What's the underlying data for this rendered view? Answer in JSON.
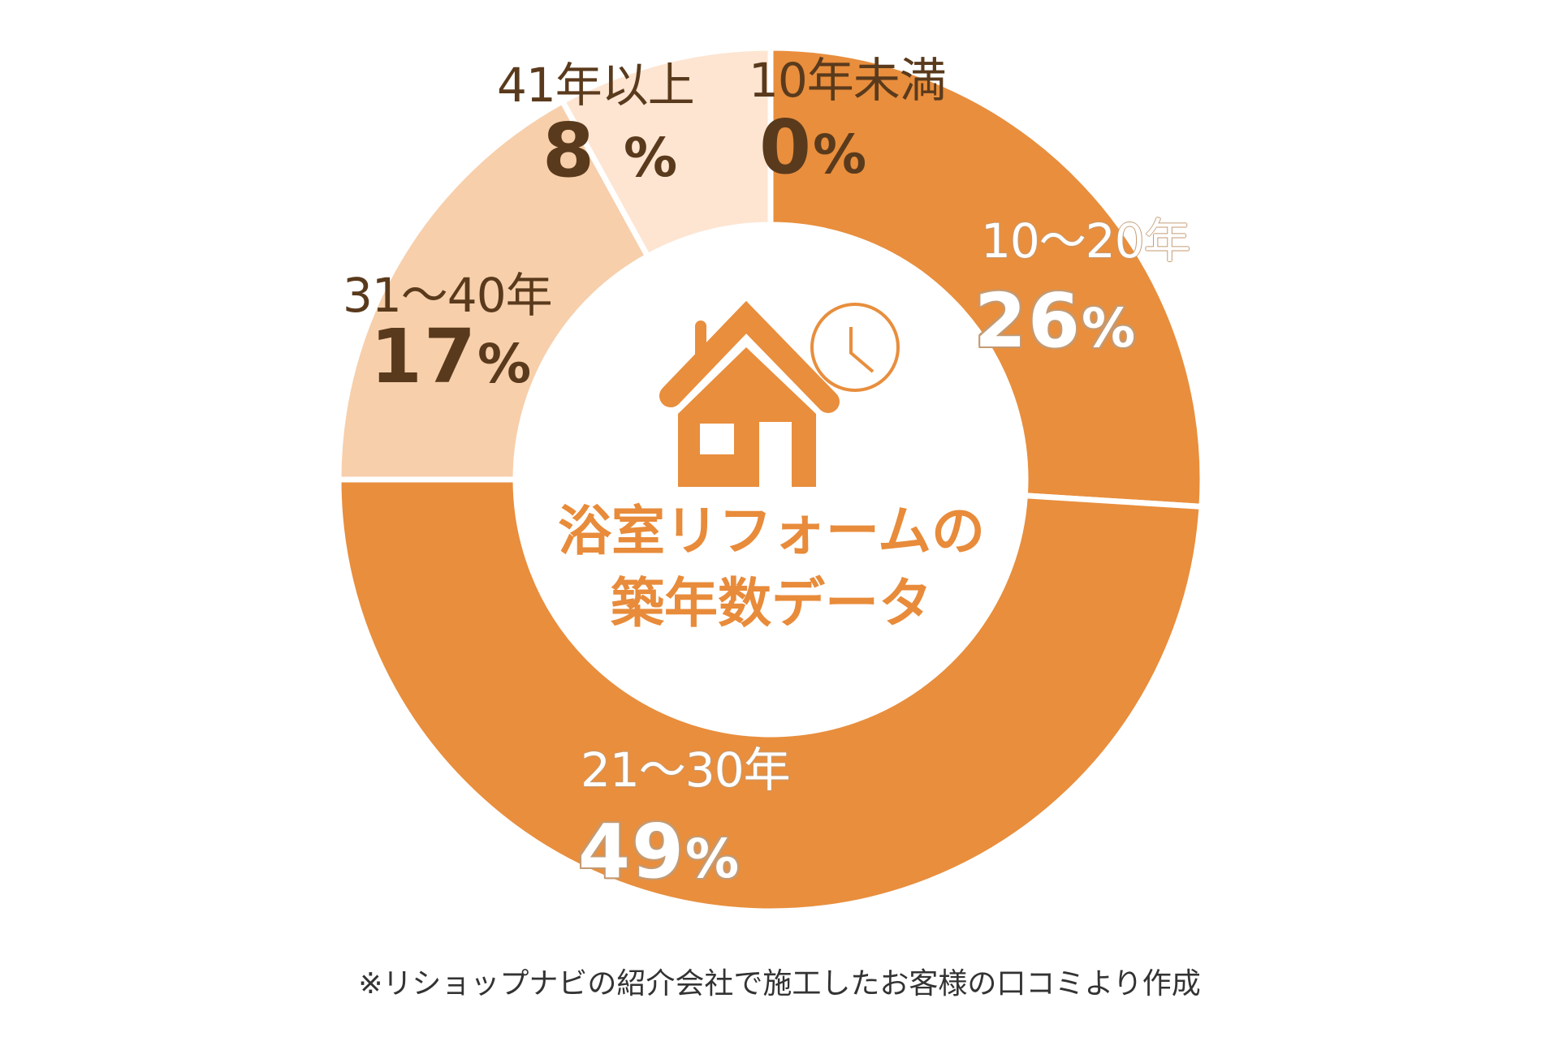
{
  "chart_data": {
    "type": "pie",
    "subtype": "donut",
    "title": "浴室リフォームの築年数データ",
    "categories": [
      "10年未満",
      "10〜20年",
      "21〜30年",
      "31〜40年",
      "41年以上"
    ],
    "values": [
      0,
      26,
      49,
      17,
      8
    ],
    "unit": "%",
    "colors": [
      "#e88e3d",
      "#e88e3d",
      "#e88e3d",
      "#f7cfab",
      "#fde5d2"
    ],
    "start_angle": "12 o'clock, clockwise",
    "legend": "none (labels placed on slices)",
    "footnote": "※リショップナビの紹介会社で施工したお客様の口コミより作成"
  },
  "center": {
    "title_line1": "浴室リフォームの",
    "title_line2": "築年数データ",
    "icon": "house-with-clock-icon"
  },
  "labels": [
    {
      "category": "10年未満",
      "percent_num": "0",
      "percent_sign": "%"
    },
    {
      "category": "10〜20年",
      "percent_num": "26",
      "percent_sign": "%"
    },
    {
      "category": "21〜30年",
      "percent_num": "49",
      "percent_sign": "%"
    },
    {
      "category": "31〜40年",
      "percent_num": "17",
      "percent_sign": "%"
    },
    {
      "category": "41年以上",
      "percent_num": "8 ",
      "percent_sign": "%"
    }
  ],
  "footnote": "※リショップナビの紹介会社で施工したお客様の口コミより作成",
  "style": {
    "accent": "#e88e3d",
    "peach": "#f7cfab",
    "pale": "#fde5d2",
    "text_dark": "#5a3a1c",
    "outline": "#c49a72"
  }
}
